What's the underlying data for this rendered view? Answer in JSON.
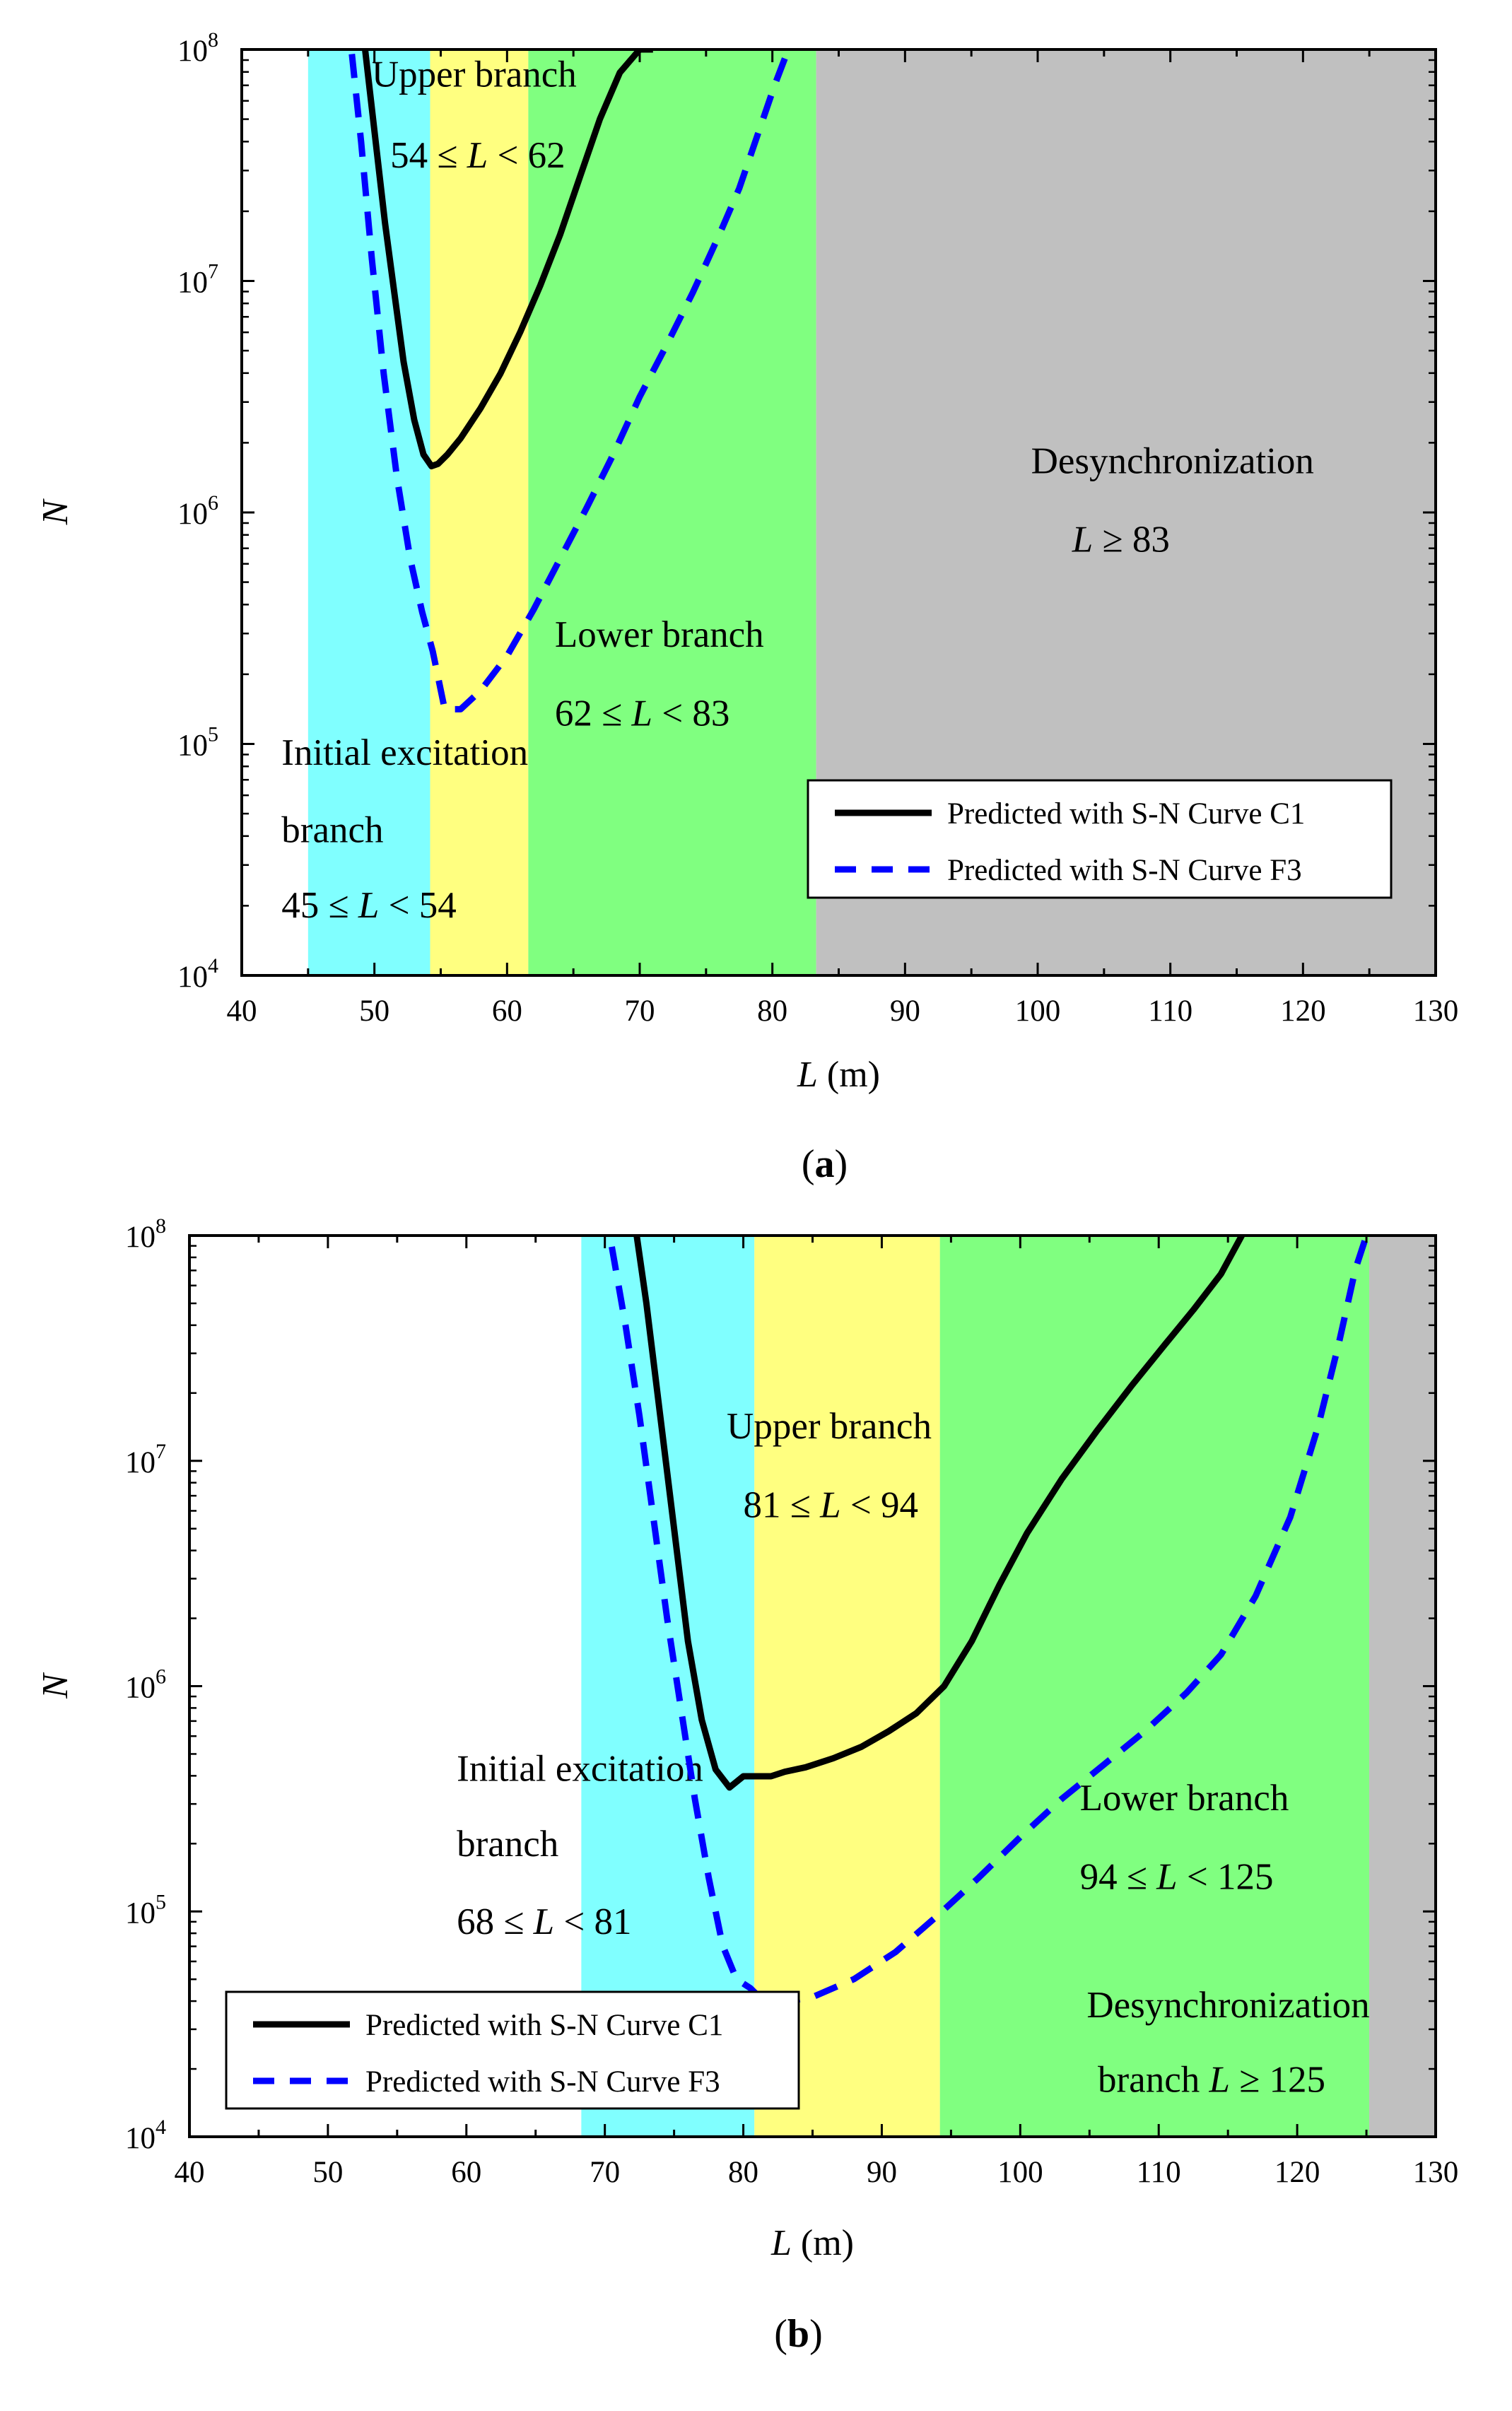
{
  "colors": {
    "initial": "#80ffff",
    "upper": "#ffff80",
    "lower": "#80ff80",
    "desync": "#c0c0c0",
    "c1": "#000000",
    "f3": "#0000ff"
  },
  "chart_data": [
    {
      "type": "line",
      "panel_label": "a",
      "xlabel": "L (m)",
      "ylabel": "N",
      "xlim": [
        40,
        130
      ],
      "ylim": [
        10000,
        100000000
      ],
      "y_scale": "log",
      "xticks": [
        40,
        50,
        60,
        70,
        80,
        90,
        100,
        110,
        120,
        130
      ],
      "yticks": [
        4,
        5,
        6,
        7,
        8
      ],
      "regions": [
        {
          "name": "initial",
          "from": 45,
          "to": 54.2,
          "color": "#80ffff"
        },
        {
          "name": "upper",
          "from": 54.2,
          "to": 61.6,
          "color": "#ffff80"
        },
        {
          "name": "lower",
          "from": 61.6,
          "to": 83.3,
          "color": "#80ff80"
        },
        {
          "name": "desync",
          "from": 83.3,
          "to": 130,
          "color": "#c0c0c0"
        }
      ],
      "annotations": [
        {
          "key": "upper_title",
          "lines": [
            [
              {
                "t": "Upper branch"
              }
            ]
          ],
          "x": 49.8,
          "logy": 7.84
        },
        {
          "key": "upper_range",
          "lines": [
            [
              {
                "t": "54 ≤ "
              },
              {
                "t": "L",
                "i": true
              },
              {
                "t": " < 62"
              }
            ]
          ],
          "x": 51.2,
          "logy": 7.49
        },
        {
          "key": "lower_title",
          "lines": [
            [
              {
                "t": "Lower branch"
              }
            ]
          ],
          "x": 63.6,
          "logy": 5.42
        },
        {
          "key": "lower_range",
          "lines": [
            [
              {
                "t": "62 ≤ "
              },
              {
                "t": "L",
                "i": true
              },
              {
                "t": " < 83"
              }
            ]
          ],
          "x": 63.6,
          "logy": 5.08
        },
        {
          "key": "desync_title",
          "lines": [
            [
              {
                "t": "Desynchronization"
              }
            ]
          ],
          "x": 99.5,
          "logy": 6.17
        },
        {
          "key": "desync_range",
          "lines": [
            [
              {
                "t": "L",
                "i": true
              },
              {
                "t": " ≥ 83"
              }
            ]
          ],
          "x": 102.6,
          "logy": 5.83
        },
        {
          "key": "initial_title",
          "lines": [
            [
              {
                "t": "Initial excitation"
              }
            ],
            [
              {
                "t": "branch"
              }
            ]
          ],
          "x": 43.0,
          "logy": 4.91,
          "line_gap_logy": 0.335
        },
        {
          "key": "initial_range",
          "lines": [
            [
              {
                "t": "45 ≤ "
              },
              {
                "t": "L",
                "i": true
              },
              {
                "t": " < 54"
              }
            ]
          ],
          "x": 43.0,
          "logy": 4.25
        }
      ],
      "legend": {
        "position": "bottom-right",
        "entries": [
          "Predicted with S-N Curve C1",
          "Predicted with S-N Curve F3"
        ]
      },
      "series": [
        {
          "name": "Predicted with S-N Curve C1",
          "style": "solid",
          "color": "#000000",
          "x": [
            49.3,
            49.7,
            50.2,
            50.8,
            51.5,
            52.2,
            53.0,
            53.7,
            54.3,
            54.8,
            55.5,
            56.5,
            58.0,
            59.5,
            61.0,
            62.5,
            64.0,
            65.5,
            67.0,
            68.5,
            70.0,
            71.0
          ],
          "logy": [
            8.0,
            7.8,
            7.55,
            7.25,
            6.95,
            6.65,
            6.4,
            6.25,
            6.2,
            6.21,
            6.25,
            6.32,
            6.45,
            6.6,
            6.78,
            6.98,
            7.2,
            7.45,
            7.7,
            7.9,
            8.0,
            8.0
          ]
        },
        {
          "name": "Predicted with S-N Curve F3",
          "style": "dashed",
          "color": "#0000ff",
          "x": [
            48.3,
            49.0,
            49.8,
            50.7,
            51.7,
            52.7,
            53.6,
            54.4,
            55.3,
            56.5,
            58.0,
            60.0,
            62.0,
            64.0,
            66.0,
            68.0,
            70.0,
            72.0,
            74.0,
            76.0,
            77.5,
            79.0,
            80.2,
            81.0,
            81.4
          ],
          "logy": [
            7.98,
            7.6,
            7.1,
            6.6,
            6.15,
            5.8,
            5.57,
            5.4,
            5.15,
            5.15,
            5.23,
            5.38,
            5.58,
            5.8,
            6.02,
            6.25,
            6.5,
            6.72,
            6.95,
            7.2,
            7.4,
            7.65,
            7.85,
            7.97,
            8.0
          ]
        }
      ]
    },
    {
      "type": "line",
      "panel_label": "b",
      "xlabel": "L (m)",
      "ylabel": "N",
      "xlim": [
        40,
        130
      ],
      "ylim": [
        10000,
        100000000
      ],
      "y_scale": "log",
      "xticks": [
        40,
        50,
        60,
        70,
        80,
        90,
        100,
        110,
        120,
        130
      ],
      "yticks": [
        4,
        5,
        6,
        7,
        8
      ],
      "regions": [
        {
          "name": "initial",
          "from": 68.3,
          "to": 80.8,
          "color": "#80ffff"
        },
        {
          "name": "upper",
          "from": 80.8,
          "to": 94.2,
          "color": "#ffff80"
        },
        {
          "name": "lower",
          "from": 94.2,
          "to": 125.2,
          "color": "#80ff80"
        },
        {
          "name": "desync",
          "from": 125.2,
          "to": 130,
          "color": "#c0c0c0"
        }
      ],
      "annotations": [
        {
          "key": "upper_title",
          "lines": [
            [
              {
                "t": "Upper branch"
              }
            ]
          ],
          "x": 78.8,
          "logy": 7.1
        },
        {
          "key": "upper_range",
          "lines": [
            [
              {
                "t": "81 ≤ "
              },
              {
                "t": "L",
                "i": true
              },
              {
                "t": " < 94"
              }
            ]
          ],
          "x": 80.0,
          "logy": 6.75
        },
        {
          "key": "initial_title",
          "lines": [
            [
              {
                "t": "Initial excitation"
              }
            ],
            [
              {
                "t": "branch"
              }
            ]
          ],
          "x": 59.3,
          "logy": 5.58,
          "line_gap_logy": 0.335
        },
        {
          "key": "initial_range",
          "lines": [
            [
              {
                "t": "68 ≤ "
              },
              {
                "t": "L",
                "i": true
              },
              {
                "t": " < 81"
              }
            ]
          ],
          "x": 59.3,
          "logy": 4.9
        },
        {
          "key": "lower_title",
          "lines": [
            [
              {
                "t": "Lower branch"
              }
            ]
          ],
          "x": 104.3,
          "logy": 5.45
        },
        {
          "key": "lower_range",
          "lines": [
            [
              {
                "t": "94 ≤ "
              },
              {
                "t": "L",
                "i": true
              },
              {
                "t": " < 125"
              }
            ]
          ],
          "x": 104.3,
          "logy": 5.1
        },
        {
          "key": "desync_title",
          "lines": [
            [
              {
                "t": "Desynchronization"
              }
            ]
          ],
          "x": 104.8,
          "logy": 4.53
        },
        {
          "key": "desync_range",
          "lines": [
            [
              {
                "t": "branch   "
              },
              {
                "t": "L",
                "i": true
              },
              {
                "t": " ≥ 125"
              }
            ]
          ],
          "x": 105.6,
          "logy": 4.2
        }
      ],
      "legend": {
        "position": "bottom-left",
        "entries": [
          "Predicted with S-N Curve C1",
          "Predicted with S-N Curve F3"
        ]
      },
      "series": [
        {
          "name": "Predicted with S-N Curve C1",
          "style": "solid",
          "color": "#000000",
          "x": [
            72.3,
            73.0,
            74.0,
            75.0,
            76.0,
            77.0,
            78.0,
            79.0,
            80.0,
            81.0,
            82.0,
            83.0,
            84.5,
            86.5,
            88.5,
            90.5,
            92.5,
            94.5,
            96.5,
            98.5,
            100.5,
            103.0,
            105.5,
            108.0,
            110.5,
            112.5,
            114.5,
            116.0
          ],
          "logy": [
            8.0,
            7.7,
            7.2,
            6.7,
            6.2,
            5.85,
            5.63,
            5.55,
            5.6,
            5.6,
            5.6,
            5.62,
            5.64,
            5.68,
            5.73,
            5.8,
            5.88,
            6.0,
            6.2,
            6.45,
            6.68,
            6.92,
            7.13,
            7.33,
            7.52,
            7.67,
            7.83,
            8.0
          ]
        },
        {
          "name": "Predicted with S-N Curve F3",
          "style": "dashed",
          "color": "#0000ff",
          "x": [
            70.5,
            71.5,
            72.5,
            73.5,
            74.5,
            75.5,
            76.5,
            77.5,
            78.5,
            79.5,
            80.5,
            81.5,
            83.0,
            85.0,
            88.0,
            91.0,
            94.0,
            97.0,
            100.0,
            103.0,
            106.0,
            109.0,
            112.0,
            114.5,
            117.0,
            119.5,
            121.5,
            123.0,
            124.2,
            125.0
          ],
          "logy": [
            7.95,
            7.6,
            7.2,
            6.75,
            6.3,
            5.9,
            5.5,
            5.15,
            4.85,
            4.7,
            4.66,
            4.6,
            4.6,
            4.62,
            4.7,
            4.82,
            4.98,
            5.15,
            5.33,
            5.5,
            5.65,
            5.8,
            5.97,
            6.14,
            6.4,
            6.75,
            7.15,
            7.52,
            7.85,
            8.0
          ]
        }
      ]
    }
  ]
}
